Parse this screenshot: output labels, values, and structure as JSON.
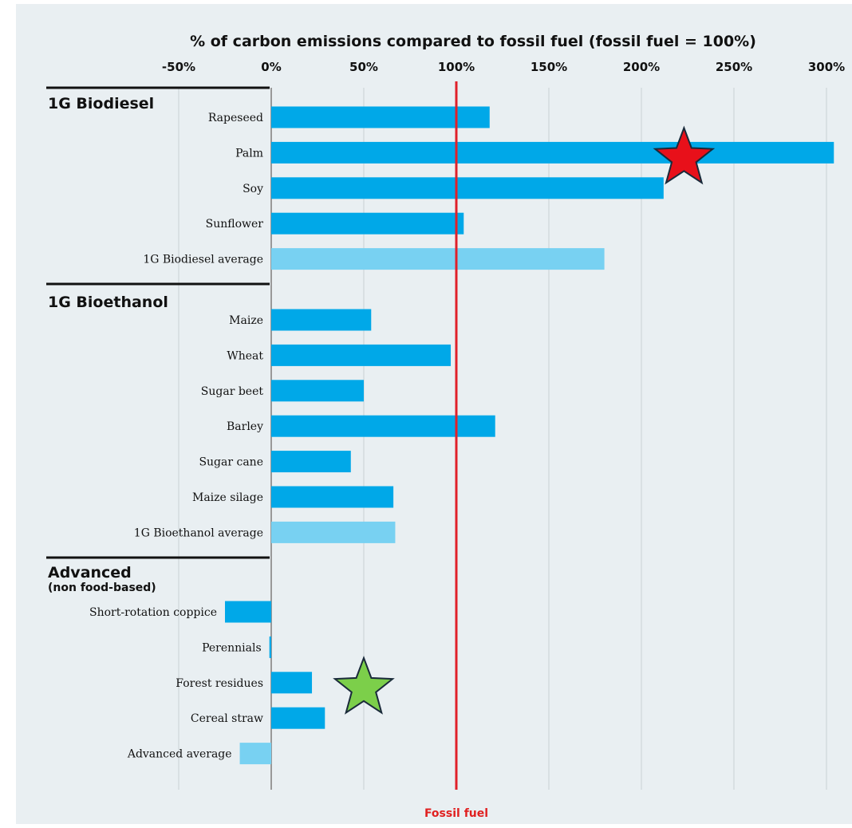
{
  "chart_data": {
    "type": "bar",
    "orientation": "horizontal",
    "title": "% of carbon emissions compared to fossil fuel (fossil fuel = 100%)",
    "x_ticks": [
      "-50%",
      "0%",
      "50%",
      "100%",
      "150%",
      "200%",
      "250%",
      "300%"
    ],
    "xlim": [
      -50,
      300
    ],
    "grid": true,
    "reference_line": {
      "value": 100,
      "label": "Fossil fuel",
      "color": "#e0202a"
    },
    "colors": {
      "bar": "#00a8e8",
      "average_bar": "#78d1f2",
      "background": "#e9eff2"
    },
    "groups": [
      {
        "label": "1G Biodiesel",
        "sublabel": "",
        "items": [
          {
            "label": "Rapeseed",
            "value": 118,
            "average": false
          },
          {
            "label": "Palm",
            "value": 304,
            "average": false
          },
          {
            "label": "Soy",
            "value": 212,
            "average": false
          },
          {
            "label": "Sunflower",
            "value": 104,
            "average": false
          },
          {
            "label": "1G Biodiesel average",
            "value": 180,
            "average": true
          }
        ]
      },
      {
        "label": "1G Bioethanol",
        "sublabel": "",
        "items": [
          {
            "label": "Maize",
            "value": 54,
            "average": false
          },
          {
            "label": "Wheat",
            "value": 97,
            "average": false
          },
          {
            "label": "Sugar beet",
            "value": 50,
            "average": false
          },
          {
            "label": "Barley",
            "value": 121,
            "average": false
          },
          {
            "label": "Sugar cane",
            "value": 43,
            "average": false
          },
          {
            "label": "Maize silage",
            "value": 66,
            "average": false
          },
          {
            "label": "1G Bioethanol average",
            "value": 67,
            "average": true
          }
        ]
      },
      {
        "label": "Advanced",
        "sublabel": "(non food-based)",
        "items": [
          {
            "label": "Short-rotation coppice",
            "value": -25,
            "average": false
          },
          {
            "label": "Perennials",
            "value": -1,
            "average": false
          },
          {
            "label": "Forest residues",
            "value": 22,
            "average": false
          },
          {
            "label": "Cereal straw",
            "value": 29,
            "average": false
          },
          {
            "label": "Advanced average",
            "value": -17,
            "average": true
          }
        ]
      }
    ],
    "markers": [
      {
        "shape": "star",
        "color": "#e8101a",
        "at_item": "Palm",
        "x_value": 223
      },
      {
        "shape": "star",
        "color": "#7ccf4a",
        "at_item": "Forest residues",
        "x_value": 50
      }
    ]
  }
}
